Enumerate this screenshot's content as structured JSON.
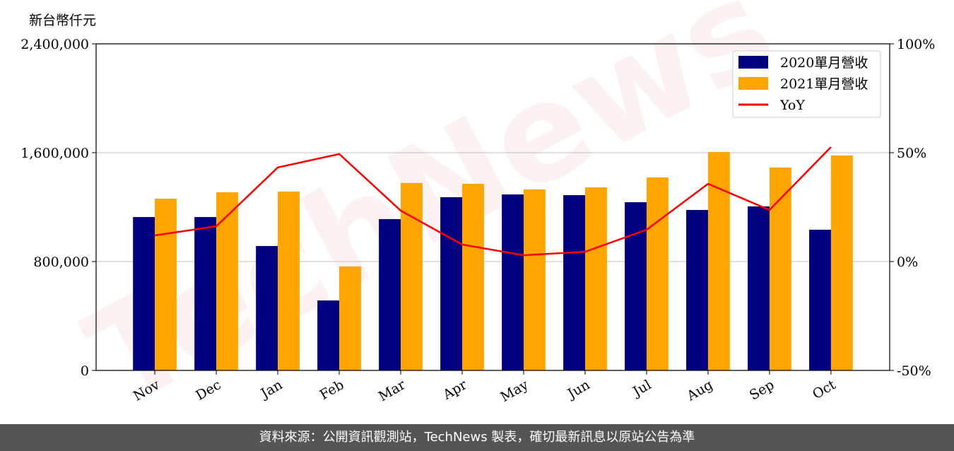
{
  "chart_data": {
    "type": "bar-line",
    "watermark": "TechNews",
    "y_label": "新台幣仟元",
    "categories": [
      "Nov",
      "Dec",
      "Jan",
      "Feb",
      "Mar",
      "Apr",
      "May",
      "Jun",
      "Jul",
      "Aug",
      "Sep",
      "Oct"
    ],
    "series": [
      {
        "name": "2020單月營收",
        "color": "#000080",
        "values": [
          1127000,
          1127000,
          914000,
          514000,
          1112000,
          1273000,
          1293000,
          1288000,
          1236000,
          1179000,
          1205000,
          1034000
        ]
      },
      {
        "name": "2021單月營收",
        "color": "#ffa500",
        "values": [
          1262000,
          1309000,
          1314000,
          764000,
          1377000,
          1371000,
          1330000,
          1345000,
          1418000,
          1605000,
          1491000,
          1579000
        ]
      },
      {
        "name": "YoY",
        "color": "#ff0000",
        "axis": "y2",
        "values": [
          12.0,
          16.2,
          43.2,
          49.4,
          23.4,
          7.8,
          2.9,
          4.5,
          14.6,
          35.7,
          23.7,
          52.6
        ]
      }
    ],
    "ylim": [
      0,
      2400000
    ],
    "yticks": [
      0,
      {
        "value": 800000,
        "label": "800,000"
      },
      {
        "value": 1600000,
        "label": "1,600,000"
      },
      {
        "value": 2400000,
        "label": "2,400,000"
      }
    ],
    "y2lim": [
      -50,
      100
    ],
    "y2ticks": [
      {
        "value": -50,
        "label": "-50%"
      },
      {
        "value": 0,
        "label": "0%"
      },
      {
        "value": 50,
        "label": "50%"
      },
      {
        "value": 100,
        "label": "100%"
      }
    ],
    "grid": true,
    "legend": "upper right"
  },
  "footer": "資料來源：公開資訊觀測站，TechNews 製表，確切最新訊息以原站公告為準"
}
